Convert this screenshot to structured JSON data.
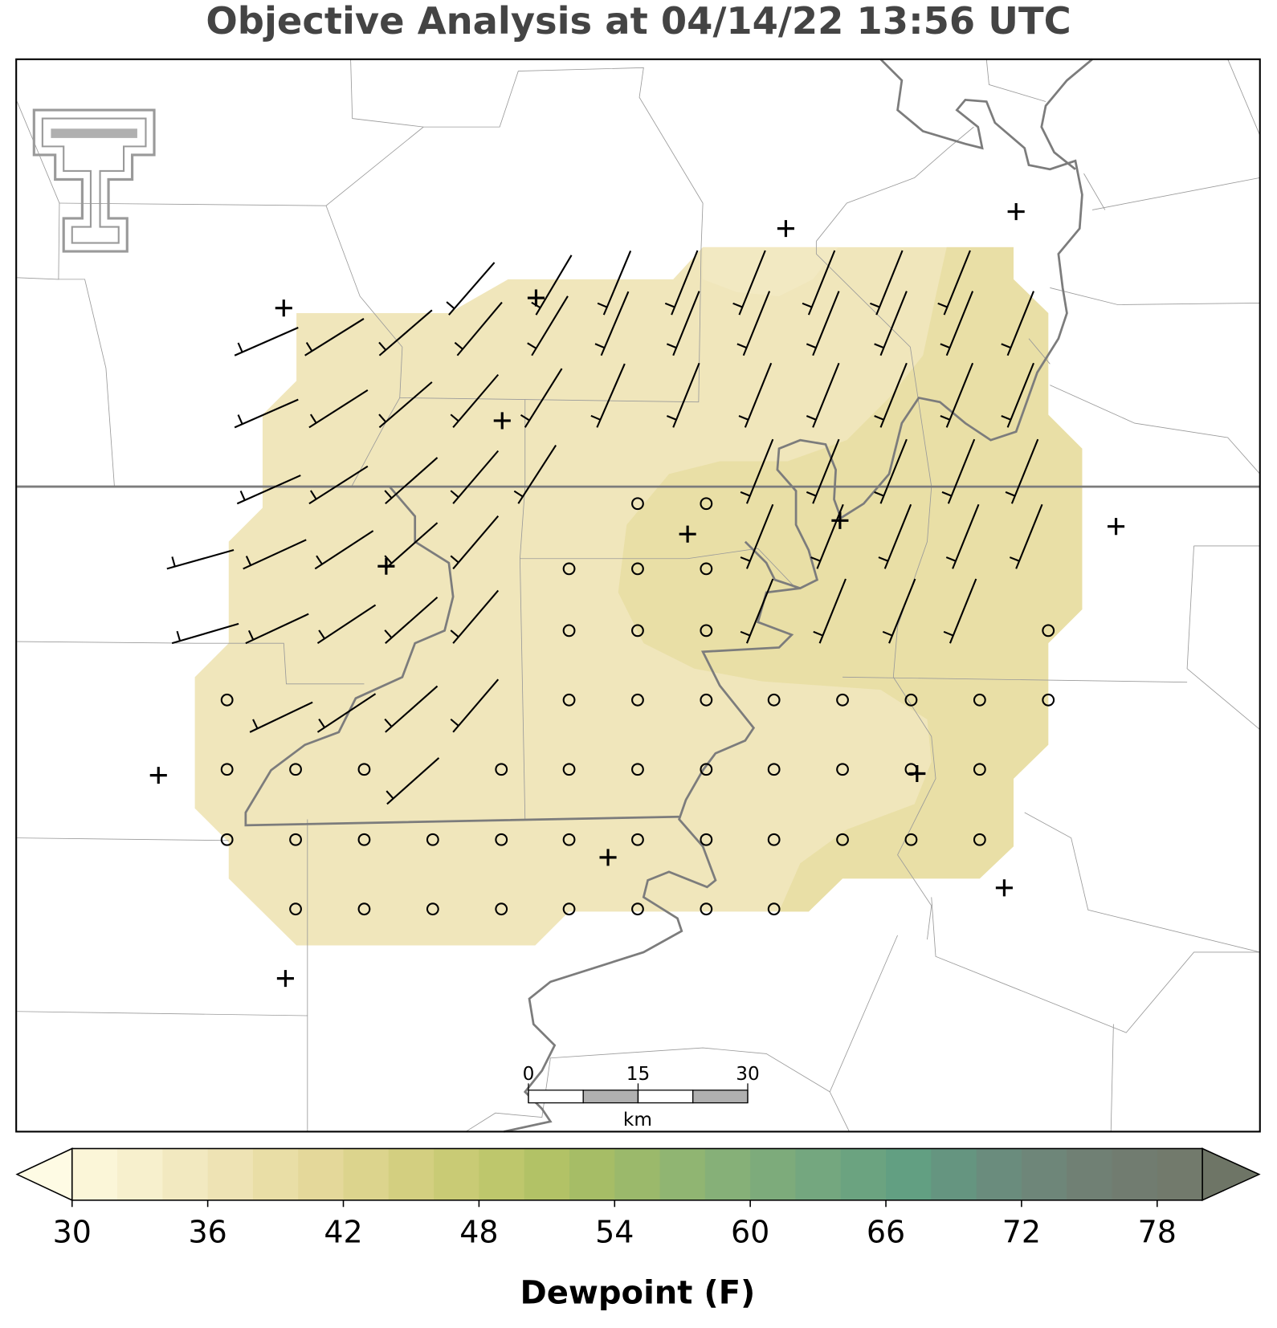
{
  "title": "Objective Analysis at 04/14/22 13:56 UTC",
  "scale_bar": {
    "lim": [
      0,
      30
    ],
    "ticks": [
      0,
      15,
      30
    ],
    "unit": "km"
  },
  "colorbar": {
    "label": "Dewpoint (F)",
    "xlim": [
      30,
      80
    ],
    "xticks": [
      30,
      36,
      42,
      48,
      54,
      60,
      66,
      72,
      78
    ],
    "levels": [
      30,
      32,
      34,
      36,
      38,
      40,
      42,
      44,
      46,
      48,
      50,
      52,
      54,
      56,
      58,
      60,
      62,
      64,
      66,
      68,
      70,
      72,
      74,
      76,
      78,
      80
    ],
    "colors": [
      "#fbf6d8",
      "#f7f0cd",
      "#f2e9c0",
      "#eee3b4",
      "#e9dea6",
      "#e4d89a",
      "#dcd48d",
      "#d3cf80",
      "#c9cb75",
      "#bec76c",
      "#b2c266",
      "#a6bd66",
      "#9bb96b",
      "#90b572",
      "#86b078",
      "#7dab7b",
      "#74a77f",
      "#6ba380",
      "#629f82",
      "#659580",
      "#6a8c7d",
      "#6e8679",
      "#708074",
      "#717c70",
      "#727a6c"
    ],
    "under_color": "#fefbe4",
    "over_color": "#6e7566"
  }
}
